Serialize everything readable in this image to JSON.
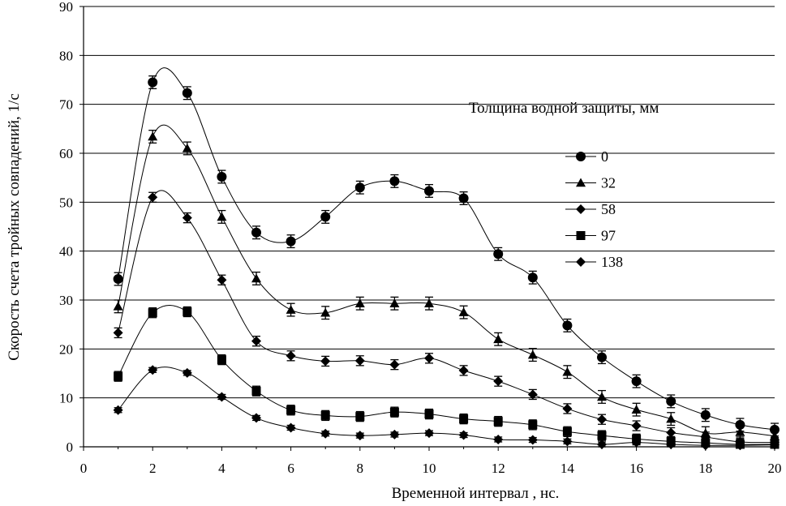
{
  "chart_data": {
    "type": "line",
    "xlabel": "Временной интервал , нс.",
    "ylabel": "Скорость счета  тройных  совпадений, 1/с",
    "xlim": [
      0,
      20
    ],
    "ylim": [
      0,
      90
    ],
    "xticks": [
      0,
      2,
      4,
      6,
      8,
      10,
      12,
      14,
      16,
      18,
      20
    ],
    "yticks": [
      0,
      10,
      20,
      30,
      40,
      50,
      60,
      70,
      80,
      90
    ],
    "grid": "horizontal",
    "legend": {
      "title": "Толщина водной защиты, мм",
      "placement": "right"
    },
    "x": [
      1,
      2,
      3,
      4,
      5,
      6,
      7,
      8,
      9,
      10,
      11,
      12,
      13,
      14,
      15,
      16,
      17,
      18,
      19,
      20
    ],
    "series": [
      {
        "name": "0",
        "marker": "circle",
        "error": 1.3,
        "values": [
          34.3,
          74.5,
          72.3,
          55.2,
          43.8,
          42.0,
          47.0,
          53.0,
          54.3,
          52.3,
          50.8,
          39.4,
          34.6,
          24.8,
          18.3,
          13.4,
          9.3,
          6.5,
          4.5,
          3.5
        ]
      },
      {
        "name": "32",
        "marker": "triangle",
        "error": 1.3,
        "values": [
          28.7,
          63.4,
          61.0,
          47.0,
          34.4,
          28.0,
          27.4,
          29.3,
          29.3,
          29.3,
          27.5,
          22.0,
          18.8,
          15.3,
          10.2,
          7.6,
          5.7,
          2.8,
          3.0,
          2.2
        ]
      },
      {
        "name": "58",
        "marker": "diamond",
        "error": 1.0,
        "values": [
          23.3,
          51.0,
          46.8,
          34.1,
          21.6,
          18.6,
          17.5,
          17.6,
          16.8,
          18.1,
          15.6,
          13.4,
          10.7,
          7.8,
          5.6,
          4.3,
          2.9,
          2.0,
          1.0,
          0.9
        ]
      },
      {
        "name": "97",
        "marker": "square",
        "error": 1.0,
        "values": [
          14.4,
          27.4,
          27.6,
          17.8,
          11.4,
          7.5,
          6.4,
          6.2,
          7.1,
          6.7,
          5.7,
          5.2,
          4.5,
          3.1,
          2.3,
          1.6,
          1.1,
          0.8,
          0.5,
          0.5
        ]
      },
      {
        "name": "138",
        "marker": "diamond",
        "error": 0.5,
        "values": [
          7.5,
          15.7,
          15.1,
          10.2,
          5.9,
          3.9,
          2.7,
          2.3,
          2.5,
          2.8,
          2.4,
          1.5,
          1.4,
          1.1,
          0.5,
          0.9,
          0.5,
          0.3,
          0.3,
          0.4
        ]
      }
    ]
  }
}
